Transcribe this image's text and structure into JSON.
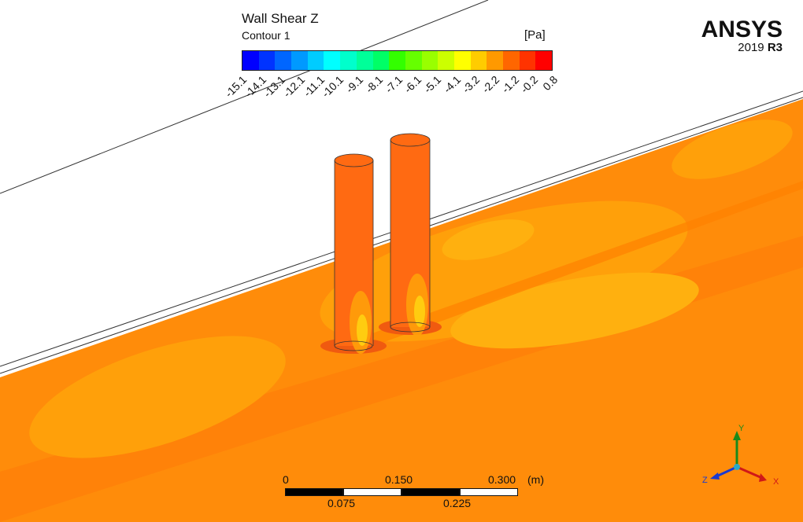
{
  "legend": {
    "title": "Wall Shear Z",
    "subtitle": "Contour 1",
    "unit": "[Pa]",
    "ticks": [
      "-15.1",
      "-14.1",
      "-13.1",
      "-12.1",
      "-11.1",
      "-10.1",
      "-9.1",
      "-8.1",
      "-7.1",
      "-6.1",
      "-5.1",
      "-4.1",
      "-3.2",
      "-2.2",
      "-1.2",
      "-0.2",
      "0.8"
    ],
    "colors": [
      "#0000ff",
      "#0033ff",
      "#0066ff",
      "#0099ff",
      "#00ccff",
      "#00ffff",
      "#00ffcc",
      "#00ff99",
      "#00ff66",
      "#33ff00",
      "#66ff00",
      "#99ff00",
      "#ccff00",
      "#ffff00",
      "#ffcc00",
      "#ff9900",
      "#ff6600",
      "#ff3300",
      "#ff0000"
    ]
  },
  "brand": {
    "name": "ANSYS",
    "version_year": "2019",
    "version_release": "R3"
  },
  "scale_bar": {
    "top_labels": [
      "0",
      "0.150",
      "0.300"
    ],
    "unit": "(m)",
    "bottom_labels": [
      "0.075",
      "0.225"
    ]
  },
  "axes": {
    "y": "Y",
    "x": "X",
    "z": "Z"
  },
  "colors": {
    "channel_base": "#ff8c0a",
    "channel_dark": "#ff7a0a",
    "channel_light": "#ffa00a",
    "channel_lighter": "#ffb00f",
    "cylinder": "#ff6a12",
    "cylinder_dark": "#f05a10"
  }
}
